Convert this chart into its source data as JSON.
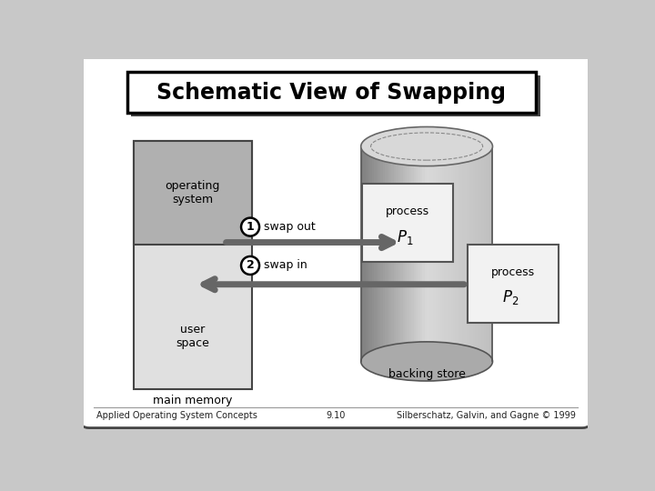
{
  "title": "Schematic View of Swapping",
  "footer_left": "Applied Operating System Concepts",
  "footer_mid": "9.10",
  "footer_right": "Silberschatz, Galvin, and Gagne © 1999",
  "main_memory_label": "main memory",
  "backing_store_label": "backing store",
  "os_label": "operating\nsystem",
  "user_space_label": "user\nspace",
  "swap_out_label": "swap out",
  "swap_in_label": "swap in",
  "arrow_color": "#666666",
  "mem_outer_color": "#cccccc",
  "os_box_color": "#b0b0b0",
  "user_box_color": "#e0e0e0",
  "process_box_color": "#f0f0f0",
  "white": "#ffffff",
  "black": "#000000",
  "outer_bg": "#c8c8c8"
}
